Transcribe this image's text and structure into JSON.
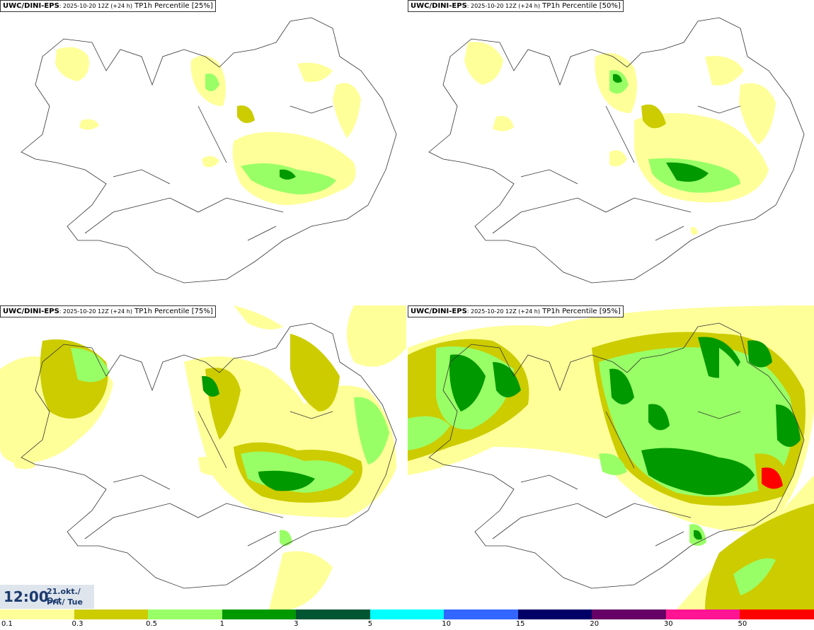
{
  "panels": [
    {
      "model": "UWC/DINI-EPS",
      "info": ": 2025-10-20 12Z (+24 h)",
      "field": " TP1h Percentile [25%]"
    },
    {
      "model": "UWC/DINI-EPS",
      "info": ": 2025-10-20 12Z (+24 h)",
      "field": " TP1h Percentile [50%]"
    },
    {
      "model": "UWC/DINI-EPS",
      "info": ": 2025-10-20 12Z (+24 h)",
      "field": " TP1h Percentile [75%]"
    },
    {
      "model": "UWC/DINI-EPS",
      "info": ": 2025-10-20 12Z (+24 h)",
      "field": " TP1h Percentile [95%]"
    }
  ],
  "time": {
    "hour": "12:00",
    "date_line1": "21.okt./ Oct",
    "date_line2": "Þri./ Tue"
  },
  "legend": {
    "ticks": [
      "0.1",
      "0.3",
      "0.5",
      "1",
      "3",
      "5",
      "10",
      "15",
      "20",
      "30",
      "50"
    ],
    "colors": [
      "#ffff99",
      "#cccc00",
      "#99ff66",
      "#009900",
      "#005533",
      "#00ffff",
      "#3366ff",
      "#000066",
      "#660066",
      "#ff1493",
      "#ff0000"
    ]
  }
}
